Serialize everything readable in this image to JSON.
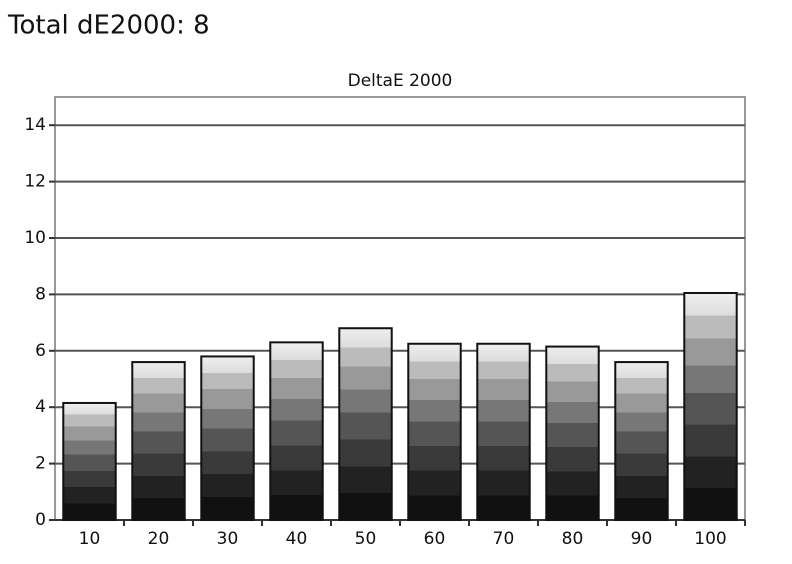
{
  "page_title": "Total dE2000: 8",
  "chart_data": {
    "type": "bar",
    "title": "DeltaE 2000",
    "categories": [
      "10",
      "20",
      "30",
      "40",
      "50",
      "60",
      "70",
      "80",
      "90",
      "100"
    ],
    "values": [
      4.15,
      5.6,
      5.8,
      6.3,
      6.8,
      6.25,
      6.25,
      6.15,
      5.6,
      8.05
    ],
    "ylim": [
      0,
      15
    ],
    "yticks": [
      0,
      2,
      4,
      6,
      8,
      10,
      12,
      14
    ],
    "grid": true
  }
}
